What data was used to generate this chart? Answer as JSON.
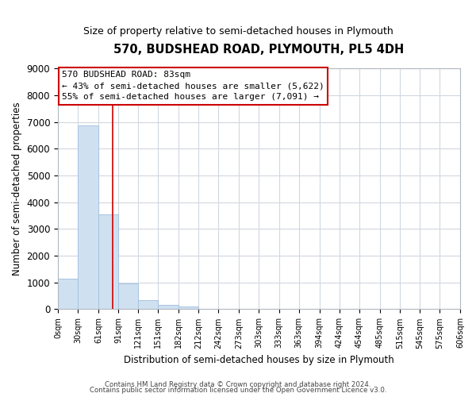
{
  "title": "570, BUDSHEAD ROAD, PLYMOUTH, PL5 4DH",
  "subtitle": "Size of property relative to semi-detached houses in Plymouth",
  "xlabel": "Distribution of semi-detached houses by size in Plymouth",
  "ylabel": "Number of semi-detached properties",
  "bar_edges": [
    0,
    30,
    61,
    91,
    121,
    151,
    182,
    212,
    242,
    273,
    303,
    333,
    363,
    394,
    424,
    454,
    485,
    515,
    545,
    575,
    606
  ],
  "bar_heights": [
    1130,
    6880,
    3560,
    970,
    350,
    150,
    100,
    0,
    0,
    0,
    0,
    0,
    0,
    0,
    0,
    0,
    0,
    0,
    0,
    0
  ],
  "bar_color": "#cfe0f0",
  "bar_edgecolor": "#a8c4e0",
  "property_line_x": 83,
  "property_line_color": "#cc0000",
  "ylim": [
    0,
    9000
  ],
  "yticks": [
    0,
    1000,
    2000,
    3000,
    4000,
    5000,
    6000,
    7000,
    8000,
    9000
  ],
  "xtick_labels": [
    "0sqm",
    "30sqm",
    "61sqm",
    "91sqm",
    "121sqm",
    "151sqm",
    "182sqm",
    "212sqm",
    "242sqm",
    "273sqm",
    "303sqm",
    "333sqm",
    "363sqm",
    "394sqm",
    "424sqm",
    "454sqm",
    "485sqm",
    "515sqm",
    "545sqm",
    "575sqm",
    "606sqm"
  ],
  "annotation_line1": "570 BUDSHEAD ROAD: 83sqm",
  "annotation_line2": "← 43% of semi-detached houses are smaller (5,622)",
  "annotation_line3": "55% of semi-detached houses are larger (7,091) →",
  "footnote1": "Contains HM Land Registry data © Crown copyright and database right 2024.",
  "footnote2": "Contains public sector information licensed under the Open Government Licence v3.0.",
  "background_color": "#ffffff",
  "grid_color": "#d0d8e0"
}
